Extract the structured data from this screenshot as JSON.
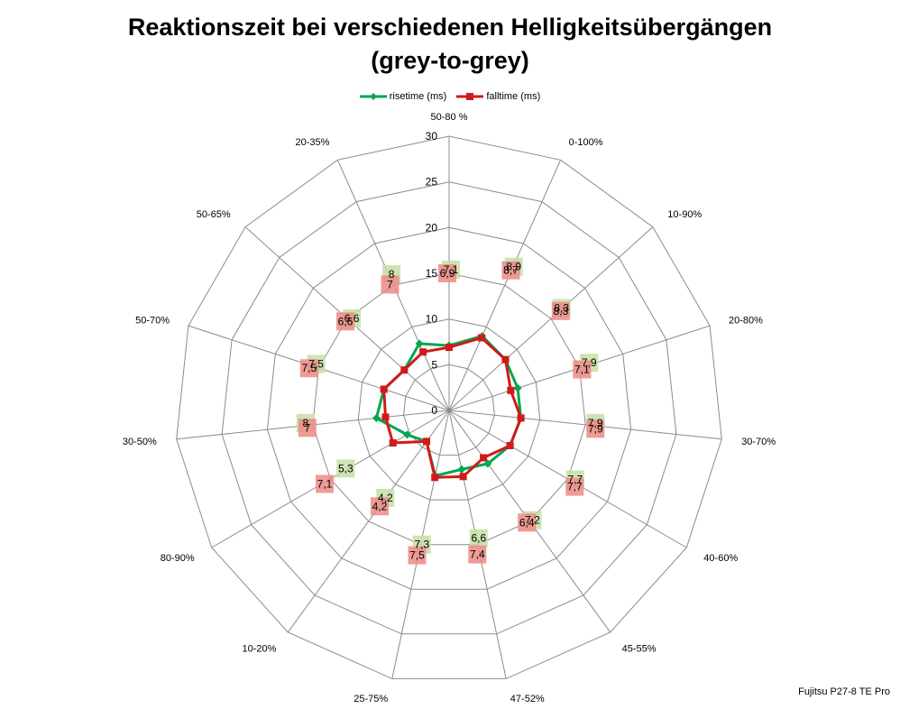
{
  "chart_data": {
    "type": "radar",
    "title_lines": [
      "Reaktionszeit bei verschiedenen Helligkeitsübergängen",
      "(grey-to-grey)"
    ],
    "categories": [
      "50-80 %",
      "0-100%",
      "10-90%",
      "20-80%",
      "30-70%",
      "40-60%",
      "45-55%",
      "47-52%",
      "25-75%",
      "10-20%",
      "80-90%",
      "30-50%",
      "50-70%",
      "50-65%",
      "20-35%"
    ],
    "ylim": [
      0,
      30
    ],
    "ticks": [
      "0",
      "5",
      "10",
      "15",
      "20",
      "25",
      "30"
    ],
    "grid": true,
    "legend_position": "top",
    "series": [
      {
        "name": "risetime (ms)",
        "color": "#00a651",
        "label_color": "#c4dfa5",
        "values": [
          7.1,
          8.9,
          8.3,
          7.9,
          7.9,
          7.7,
          7.2,
          6.6,
          7.3,
          4.2,
          5.3,
          8,
          7.5,
          6.6,
          8
        ],
        "labels": [
          "7,1",
          "8,9",
          "8,3",
          "7,9",
          "7,9",
          "7,7",
          "7,2",
          "6,6",
          "7,3",
          "4,2",
          "5,3",
          "8",
          "7,5",
          "6,6",
          "8"
        ]
      },
      {
        "name": "falltime (ms)",
        "color": "#d11a1a",
        "label_color": "#ec8a86",
        "values": [
          6.9,
          8.7,
          8.3,
          7.1,
          7.9,
          7.7,
          6.4,
          7.4,
          7.5,
          4.2,
          7.1,
          7,
          7.5,
          6.6,
          7
        ],
        "labels": [
          "6,9",
          "8,7",
          "8,3",
          "7,1",
          "7,9",
          "7,7",
          "6,4",
          "7,4",
          "7,5",
          "4,2",
          "7,1",
          "7",
          "7,5",
          "6,6",
          "7"
        ]
      }
    ]
  },
  "footer_note": "Fujitsu P27-8 TE Pro"
}
